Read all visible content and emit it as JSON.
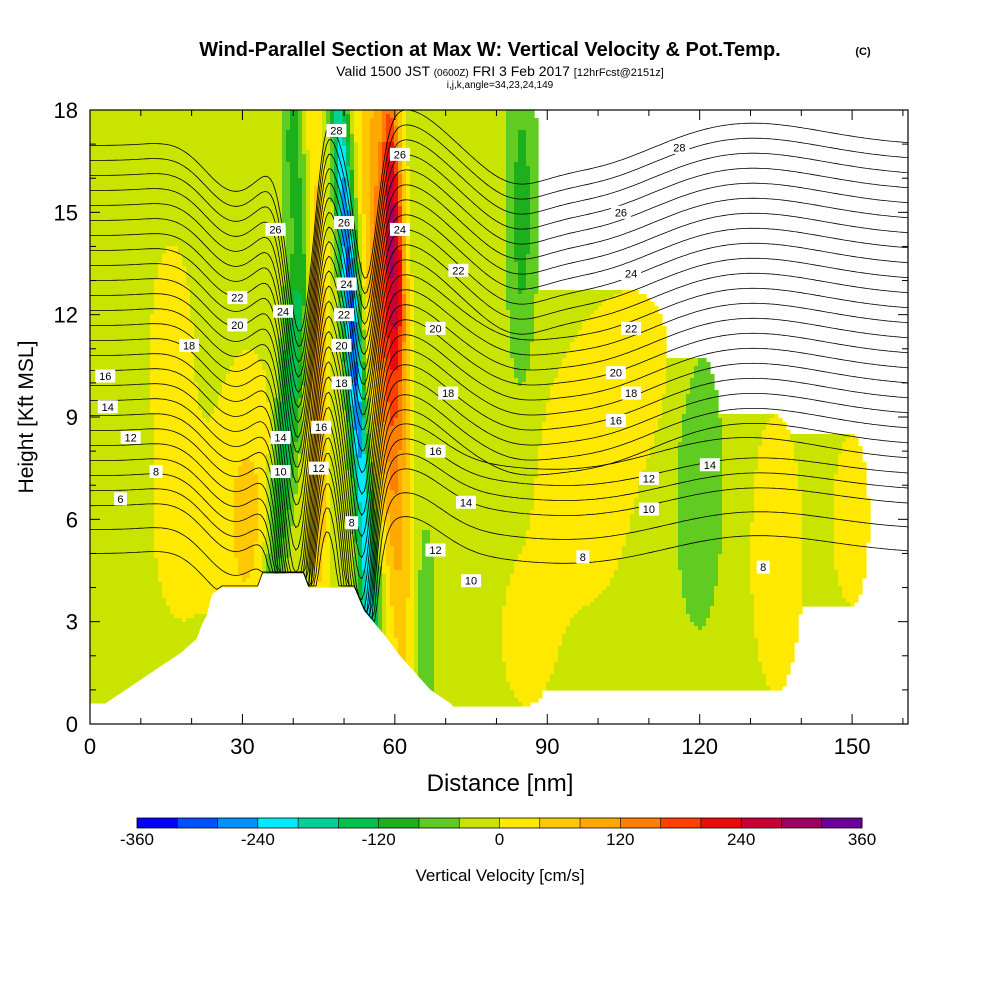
{
  "title": {
    "main": "Wind-Parallel Section at Max W: Vertical Velocity & Pot.Temp.",
    "copyright": "(C)",
    "valid_a": "Valid 1500 JST",
    "valid_b": "(0600Z)",
    "valid_c": "FRI 3 Feb 2017",
    "valid_d": "[12hrFcst@2151z]",
    "indices": "i,j,k,angle=34,23,24,149"
  },
  "colors": {
    "bins": [
      "#0000ff",
      "#0050ff",
      "#0090ff",
      "#00eaff",
      "#00d29a",
      "#00c14f",
      "#1cb11c",
      "#60cc22",
      "#c8e400",
      "#ffe900",
      "#ffc800",
      "#ffa800",
      "#ff7f00",
      "#ff4000",
      "#ee0a0a",
      "#c80033",
      "#9b0060",
      "#6a0096"
    ],
    "terrain": "#ffffff",
    "contour": "#000000"
  },
  "chart_data": {
    "type": "heatmap",
    "x_label": "Distance [nm]",
    "y_label": "Height [Kft MSL]",
    "x_range": [
      0,
      161
    ],
    "y_range": [
      0,
      18
    ],
    "x_ticks": [
      0,
      30,
      60,
      90,
      120,
      150
    ],
    "y_ticks": [
      0,
      3,
      6,
      9,
      12,
      15,
      18
    ],
    "colorbar": {
      "label": "Vertical Velocity [cm/s]",
      "range": [
        -360,
        360
      ],
      "bin_width": 40,
      "tick_values": [
        -360,
        -240,
        -120,
        0,
        120,
        240,
        360
      ],
      "tick_labels": [
        "-360",
        "-240",
        "-120",
        "0",
        "120",
        "240",
        "360"
      ]
    },
    "contour_field": "Potential temperature (C)",
    "contour_labels": [
      {
        "text": "6",
        "x": 6,
        "y": 6.6
      },
      {
        "text": "8",
        "x": 13,
        "y": 7.4
      },
      {
        "text": "12",
        "x": 8,
        "y": 8.4
      },
      {
        "text": "14",
        "x": 3.5,
        "y": 9.3
      },
      {
        "text": "16",
        "x": 3,
        "y": 10.2
      },
      {
        "text": "18",
        "x": 19.5,
        "y": 11.1
      },
      {
        "text": "20",
        "x": 29,
        "y": 11.7
      },
      {
        "text": "22",
        "x": 29,
        "y": 12.5
      },
      {
        "text": "26",
        "x": 36.5,
        "y": 14.5
      },
      {
        "text": "24",
        "x": 38,
        "y": 12.1
      },
      {
        "text": "14",
        "x": 37.5,
        "y": 8.4
      },
      {
        "text": "10",
        "x": 37.5,
        "y": 7.4
      },
      {
        "text": "28",
        "x": 48.5,
        "y": 17.4
      },
      {
        "text": "26",
        "x": 50,
        "y": 14.7
      },
      {
        "text": "24",
        "x": 50.5,
        "y": 12.9
      },
      {
        "text": "22",
        "x": 50,
        "y": 12.0
      },
      {
        "text": "20",
        "x": 49.5,
        "y": 11.1
      },
      {
        "text": "18",
        "x": 49.5,
        "y": 10.0
      },
      {
        "text": "16",
        "x": 45.5,
        "y": 8.7
      },
      {
        "text": "12",
        "x": 45,
        "y": 7.5
      },
      {
        "text": "8",
        "x": 51.5,
        "y": 5.9
      },
      {
        "text": "26",
        "x": 61,
        "y": 16.7
      },
      {
        "text": "24",
        "x": 61,
        "y": 14.5
      },
      {
        "text": "22",
        "x": 72.5,
        "y": 13.3
      },
      {
        "text": "20",
        "x": 68,
        "y": 11.6
      },
      {
        "text": "18",
        "x": 70.5,
        "y": 9.7
      },
      {
        "text": "16",
        "x": 68,
        "y": 8.0
      },
      {
        "text": "14",
        "x": 74,
        "y": 6.5
      },
      {
        "text": "12",
        "x": 68,
        "y": 5.1
      },
      {
        "text": "10",
        "x": 75,
        "y": 4.2
      },
      {
        "text": "8",
        "x": 97,
        "y": 4.9
      },
      {
        "text": "28",
        "x": 116,
        "y": 16.9
      },
      {
        "text": "26",
        "x": 104.5,
        "y": 15.0
      },
      {
        "text": "24",
        "x": 106.5,
        "y": 13.2
      },
      {
        "text": "22",
        "x": 106.5,
        "y": 11.6
      },
      {
        "text": "20",
        "x": 103.5,
        "y": 10.3
      },
      {
        "text": "18",
        "x": 106.5,
        "y": 9.7
      },
      {
        "text": "16",
        "x": 103.5,
        "y": 8.9
      },
      {
        "text": "14",
        "x": 122,
        "y": 7.6
      },
      {
        "text": "12",
        "x": 110,
        "y": 7.2
      },
      {
        "text": "10",
        "x": 110,
        "y": 6.3
      },
      {
        "text": "8",
        "x": 132.5,
        "y": 4.6
      }
    ]
  }
}
